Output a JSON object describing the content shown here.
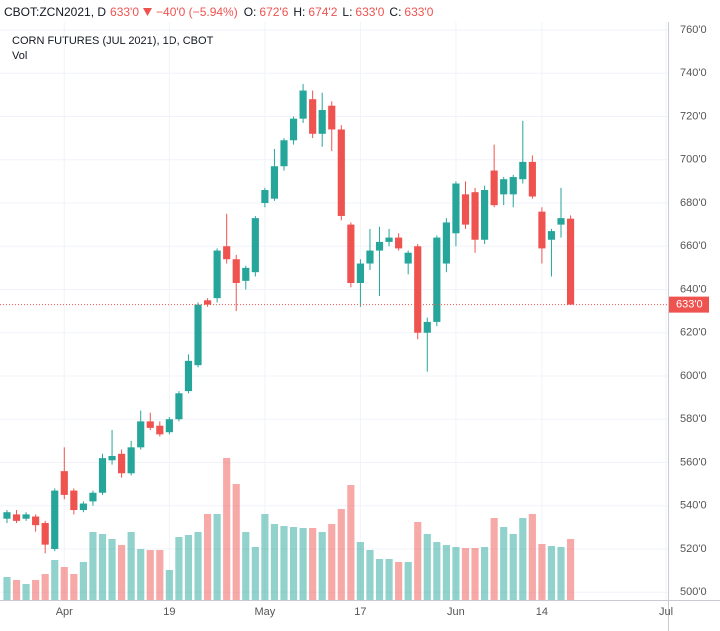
{
  "header": {
    "symbol": "CBOT:ZCN2021, D",
    "last": "633'0",
    "change": "−40'0 (−5.94%)",
    "ohlc": [
      {
        "label": "O:",
        "value": "672'6"
      },
      {
        "label": "H:",
        "value": "674'2"
      },
      {
        "label": "L:",
        "value": "633'0"
      },
      {
        "label": "C:",
        "value": "633'0"
      }
    ]
  },
  "chart_data": {
    "type": "candlestick",
    "title": "CORN FUTURES (JUL 2021), 1D, CBOT",
    "volume_label": "Vol",
    "up_color": "#26a69a",
    "down_color": "#ef5350",
    "open": [
      534,
      536,
      534,
      535,
      532,
      520,
      556,
      547,
      538,
      542,
      546,
      561,
      564,
      555,
      567,
      579,
      577,
      574,
      580,
      593,
      605,
      635,
      636,
      660,
      654,
      644,
      648,
      680,
      682,
      697,
      709,
      719,
      728,
      712,
      725,
      714,
      670,
      643,
      652,
      658,
      662,
      664,
      652,
      660,
      620,
      625,
      652,
      666,
      684,
      685,
      663,
      695,
      684,
      684,
      691,
      699,
      676,
      663,
      670,
      672.75
    ],
    "high": [
      538,
      538,
      537,
      536,
      533,
      548,
      567,
      548,
      542,
      547,
      564,
      575,
      566,
      570,
      584,
      583,
      579,
      581,
      593,
      610,
      634,
      636,
      659,
      675,
      656,
      651,
      674,
      687,
      705,
      710,
      720,
      735,
      732,
      731,
      727,
      716,
      671,
      654,
      668,
      669,
      668,
      666,
      658,
      661,
      627,
      665,
      673,
      690,
      690,
      687,
      688,
      707,
      692,
      693,
      718,
      702,
      678,
      668,
      687,
      674.25
    ],
    "low": [
      532,
      532,
      533,
      528,
      518,
      519,
      543,
      536,
      537,
      540,
      545,
      559,
      553,
      554,
      566,
      575,
      572,
      573,
      579,
      592,
      604,
      632,
      634,
      652,
      630,
      640,
      646,
      678,
      681,
      695,
      707,
      717,
      710,
      706,
      704,
      672,
      641,
      632,
      649,
      637,
      660,
      658,
      647,
      617,
      602,
      623,
      648,
      660,
      668,
      657,
      661,
      678,
      679,
      678,
      689,
      682,
      652,
      646,
      664,
      633
    ],
    "close": [
      537,
      533,
      536,
      531,
      522,
      547,
      545,
      538,
      541,
      546,
      562,
      563,
      555,
      567,
      579,
      576,
      573,
      580,
      592,
      607,
      633,
      633,
      658,
      654,
      643,
      650,
      673,
      686,
      697,
      709,
      719,
      732,
      712,
      723,
      714,
      674,
      643,
      652,
      658,
      662,
      664,
      659,
      657,
      620,
      625,
      664,
      671,
      689,
      670,
      663,
      686,
      679,
      691,
      692,
      699,
      683,
      659,
      667,
      673,
      633
    ],
    "volume": [
      23,
      20,
      16,
      20,
      26,
      40,
      33,
      26,
      38,
      68,
      66,
      61,
      55,
      68,
      51,
      50,
      50,
      30,
      63,
      65,
      68,
      86,
      86,
      142,
      116,
      68,
      53,
      86,
      76,
      74,
      73,
      72,
      72,
      68,
      76,
      91,
      115,
      58,
      50,
      41,
      41,
      38,
      38,
      78,
      66,
      58,
      55,
      53,
      52,
      52,
      53,
      82,
      73,
      66,
      82,
      86,
      56,
      54,
      53,
      61
    ],
    "vlim": [
      0,
      578
    ],
    "xlim": [
      -0.73,
      69.2
    ],
    "xticks": [
      {
        "value": 6,
        "label": "Apr"
      },
      {
        "value": 17,
        "label": "19"
      },
      {
        "value": 27,
        "label": "May"
      },
      {
        "value": 37,
        "label": "17"
      },
      {
        "value": 47,
        "label": "Jun"
      },
      {
        "value": 56,
        "label": "14"
      },
      {
        "value": 69,
        "label": "Jul"
      }
    ],
    "ylim": [
      496.4,
      763.7
    ],
    "yticks": [
      {
        "value": 500,
        "label": "500'0"
      },
      {
        "value": 520,
        "label": "520'0"
      },
      {
        "value": 540,
        "label": "540'0"
      },
      {
        "value": 560,
        "label": "560'0"
      },
      {
        "value": 580,
        "label": "580'0"
      },
      {
        "value": 600,
        "label": "600'0"
      },
      {
        "value": 620,
        "label": "620'0"
      },
      {
        "value": 640,
        "label": "640'0"
      },
      {
        "value": 660,
        "label": "660'0"
      },
      {
        "value": 680,
        "label": "680'0"
      },
      {
        "value": 700,
        "label": "700'0"
      },
      {
        "value": 720,
        "label": "720'0"
      },
      {
        "value": 740,
        "label": "740'0"
      },
      {
        "value": 760,
        "label": "760'0"
      }
    ],
    "last_price": {
      "value": 633,
      "label": "633'0"
    }
  }
}
